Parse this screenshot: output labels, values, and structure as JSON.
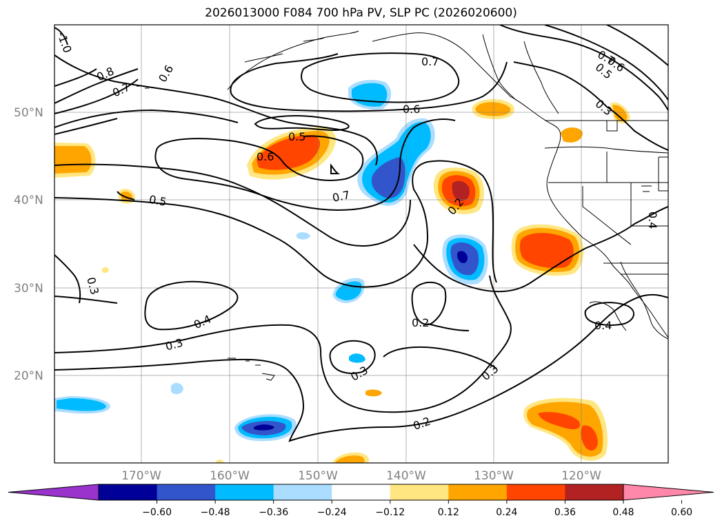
{
  "title": "2026013000 F084 700 hPa PV, SLP PC (2026020600)",
  "latitude_labels": [
    "50°N",
    "40°N",
    "30°N",
    "20°N"
  ],
  "longitude_labels": [
    "170°W",
    "160°W",
    "150°W",
    "140°W",
    "130°W",
    "120°W"
  ],
  "colorbar": {
    "colors": [
      "#9933cc",
      "#000099",
      "#3355cc",
      "#00bbff",
      "#aaddff",
      "#ffffff",
      "#ffe680",
      "#ffa500",
      "#ff4500",
      "#b22222",
      "#ff88aa"
    ],
    "tick_labels": [
      "−0.60",
      "−0.48",
      "−0.36",
      "−0.24",
      "−0.12",
      "0.12",
      "0.24",
      "0.36",
      "0.48",
      "0.60"
    ]
  },
  "contour_labels": [
    "-1.0",
    "0.8",
    "0.7",
    "0.6",
    "0.7",
    "0.6",
    "0.5",
    "0.6",
    "0.7",
    "0.5",
    "0.7",
    "0.6",
    "0.5",
    "0.3",
    "0.3",
    "0.2",
    "0.4",
    "0.3",
    "0.3",
    "0.3",
    "0.2",
    "0.4",
    "0.4"
  ]
}
